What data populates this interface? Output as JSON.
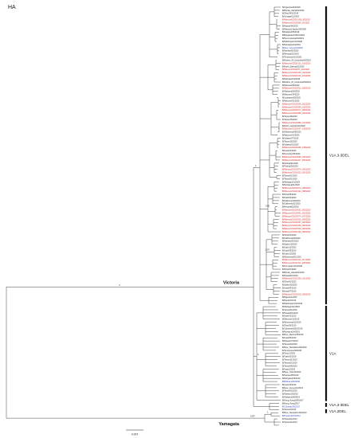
{
  "title": "HA",
  "colors": {
    "default": "#222222",
    "highlight": "#d42323",
    "reference": "#2a3fbf",
    "line": "#444444"
  },
  "clades": [
    {
      "label": "V1A.3-3DEL"
    },
    {
      "label": "V1A"
    },
    {
      "label": "V1A.3-3DEL"
    },
    {
      "label": "V1A.2DEL"
    }
  ],
  "lineages": {
    "victoria": "Victoria",
    "yamagata": "Yamagata"
  },
  "support": {
    "root": "1",
    "vic_split": "1",
    "top": "1",
    "a": "0.95",
    "b": "0.97",
    "c": "1",
    "d": "1",
    "yam": "0.97",
    "yam2": "1"
  },
  "scale_bar": "0.007",
  "taxa": [
    {
      "n": "B/Argentina/64/2020",
      "c": "default"
    },
    {
      "n": "B/Rhode_Island/01/2020",
      "c": "default"
    },
    {
      "n": "B/Ohio/2432/2019",
      "c": "default"
    },
    {
      "n": "B/Georgia/12/2019",
      "c": "default"
    },
    {
      "n": "B/Missouri/CD20/1/06_82/2020",
      "c": "highlight"
    },
    {
      "n": "B/Missouri/CD20/064_30/2020",
      "c": "highlight"
    },
    {
      "n": "B/Hawaii/34/2020",
      "c": "default"
    },
    {
      "n": "B/Missouri/Jacobs/06/2020",
      "c": "default"
    },
    {
      "n": "B/England/25/2019",
      "c": "default"
    },
    {
      "n": "B/Bangladesh/4001/2020",
      "c": "default"
    },
    {
      "n": "B/Pennsylvania/33/2019",
      "c": "default"
    },
    {
      "n": "B/Washington/01/2020",
      "c": "default"
    },
    {
      "n": "B/Nebraska/14/2019",
      "c": "default"
    },
    {
      "n": "B/New_Jersey/04/2020",
      "c": "reference"
    },
    {
      "n": "B/Kansas/02/2020",
      "c": "default"
    },
    {
      "n": "B/Nevada/22/2019",
      "c": "default"
    },
    {
      "n": "B/Tennessee/01/2020",
      "c": "default"
    },
    {
      "n": "B/District_Of_Columbia/20/2019",
      "c": "default"
    },
    {
      "n": "B/Missouri/CD20/121_013/2020",
      "c": "highlight"
    },
    {
      "n": "B/North_Dakota/01/2020",
      "c": "default"
    },
    {
      "n": "B/Missouri/CD20/07_003/2020",
      "c": "highlight"
    },
    {
      "n": "B/Missouri/CD20/130_042/2020",
      "c": "highlight"
    },
    {
      "n": "B/Missouri/CD20/119_014/2020",
      "c": "highlight"
    },
    {
      "n": "B/Maryland/11/2019",
      "c": "default"
    },
    {
      "n": "B/District_Of_Columbia/35/2019",
      "c": "default"
    },
    {
      "n": "B/Missouri/05/2020",
      "c": "default"
    },
    {
      "n": "B/Missouri/CD20/022_029/2020",
      "c": "highlight"
    },
    {
      "n": "B/Alabama/06/2020",
      "c": "default"
    },
    {
      "n": "B/Missouri/24/2020",
      "c": "default"
    },
    {
      "n": "B/Louisiana/35/2020",
      "c": "default"
    },
    {
      "n": "B/Missouri/01/2020",
      "c": "default"
    },
    {
      "n": "B/Missouri/CD20/035_001/2020",
      "c": "highlight"
    },
    {
      "n": "B/Missouri/CD20/054_015/2020",
      "c": "highlight"
    },
    {
      "n": "B/Missouri/CD20/077_009/2020",
      "c": "highlight"
    },
    {
      "n": "B/Missouri/CD20/089_010/2020",
      "c": "highlight"
    },
    {
      "n": "B/Texas/15/2020",
      "c": "default"
    },
    {
      "n": "B/Texas/10/2019",
      "c": "default"
    },
    {
      "n": "B/Missouri/CD20/089_021/2020",
      "c": "highlight"
    },
    {
      "n": "B/North_Carolina/01/2020",
      "c": "default"
    },
    {
      "n": "B/Missouri/CD20/007_015/2020",
      "c": "highlight"
    },
    {
      "n": "B/Oklahoma/06/2020",
      "c": "default"
    },
    {
      "n": "B/Missouri/01/2020",
      "c": "default"
    },
    {
      "n": "B/Indiana/07/2019",
      "c": "default"
    },
    {
      "n": "B/Texas/15/2020",
      "c": "default"
    },
    {
      "n": "B/Indiana/01/2020",
      "c": "default"
    },
    {
      "n": "B/Missouri/CD20/095_018/2020",
      "c": "highlight"
    },
    {
      "n": "B/Iowa/01/2020",
      "c": "default"
    },
    {
      "n": "B/Kentucky/05/2020",
      "c": "default"
    },
    {
      "n": "B/Missouri/CD20/095_023/2020",
      "c": "highlight"
    },
    {
      "n": "B/Missouri/CD20/117_005/2020",
      "c": "highlight"
    },
    {
      "n": "B/Florida/01/2020",
      "c": "default"
    },
    {
      "n": "B/Florida/25/2020",
      "c": "default"
    },
    {
      "n": "B/Missouri/CD20/074_023/2020",
      "c": "highlight"
    },
    {
      "n": "B/Missouri/CD20/022_001/2020",
      "c": "highlight"
    },
    {
      "n": "B/Texas/01/2020",
      "c": "default"
    },
    {
      "n": "B/Texas/01/2020",
      "c": "default"
    },
    {
      "n": "B/Michigan/01/2020",
      "c": "default"
    },
    {
      "n": "B/Montana/01/2020",
      "c": "default"
    },
    {
      "n": "B/Missouri/CD20/074_028/2020",
      "c": "highlight"
    },
    {
      "n": "B/Missouri/CD20/142_088/2020",
      "c": "highlight"
    },
    {
      "n": "B/Ohio/05/2020",
      "c": "default"
    },
    {
      "n": "B/Utah/04/2020",
      "c": "default"
    },
    {
      "n": "B/California/40/2019",
      "c": "default"
    },
    {
      "n": "B/California/21/2020",
      "c": "default"
    },
    {
      "n": "B/Nevada/02/2020",
      "c": "default"
    },
    {
      "n": "B/Missouri/CD20/052_002/2020",
      "c": "highlight"
    },
    {
      "n": "B/Missouri/CD20/061_001/2020",
      "c": "highlight"
    },
    {
      "n": "B/Missouri/CD20/074_007/2020",
      "c": "highlight"
    },
    {
      "n": "B/Missouri/CD20/026_009/2020",
      "c": "highlight"
    },
    {
      "n": "B/Missouri/CD20/097_020/2020",
      "c": "highlight"
    },
    {
      "n": "B/Missouri/CD20/139_090/2020",
      "c": "highlight"
    },
    {
      "n": "B/Missouri/CD20/039_002/2020",
      "c": "highlight"
    },
    {
      "n": "B/Missouri/CD20/146_008/2020",
      "c": "highlight"
    },
    {
      "n": "B/Ohio/01/2020",
      "c": "default"
    },
    {
      "n": "B/California/03/2020",
      "c": "default"
    },
    {
      "n": "B/Kansas/02/2020",
      "c": "default"
    },
    {
      "n": "B/Idaho/12/2020",
      "c": "default"
    },
    {
      "n": "B/Utah/13/2020",
      "c": "default"
    },
    {
      "n": "B/Utah/05/2020",
      "c": "default"
    },
    {
      "n": "B/Utah/11/2020",
      "c": "default"
    },
    {
      "n": "B/Minnesota/01/2020",
      "c": "default"
    },
    {
      "n": "B/Missouri/CD20/113_017/2020",
      "c": "highlight"
    },
    {
      "n": "B/Missouri/CD20/113_028/2020",
      "c": "highlight"
    },
    {
      "n": "B/Connecticut/11/2020",
      "c": "default"
    },
    {
      "n": "B/Ohio/07/2020",
      "c": "default"
    },
    {
      "n": "B/Rhode_Island/01/2019",
      "c": "default"
    },
    {
      "n": "B/Hawaii/01/2020",
      "c": "default"
    },
    {
      "n": "B/Missouri/CD20/100_011/2020",
      "c": "highlight"
    },
    {
      "n": "B/Ohio/01/2020",
      "c": "default"
    },
    {
      "n": "B/Idaho/10/2020",
      "c": "default"
    },
    {
      "n": "B/Iowa/04/2019",
      "c": "default"
    },
    {
      "n": "B/Iowa/07/2019",
      "c": "default"
    },
    {
      "n": "B/Missouri/CD20/015_026/2020",
      "c": "highlight"
    },
    {
      "n": "B/Nigeria/1/2020",
      "c": "default"
    },
    {
      "n": "B/Nepal/1/2019",
      "c": "default"
    },
    {
      "n": "B/Washington/02/2019",
      "c": "default"
    },
    {
      "n": "B/Michigan/11/2019",
      "c": "default"
    },
    {
      "n": "B/Texas/01/2019",
      "c": "default"
    },
    {
      "n": "B/Hawaii/01/2019",
      "c": "default"
    },
    {
      "n": "B/Iowa/12/2019",
      "c": "default"
    },
    {
      "n": "B/Missouri/11/2019",
      "c": "default"
    },
    {
      "n": "B/Minnesota/11/2019",
      "c": "default"
    },
    {
      "n": "B/Ohio/06/2019",
      "c": "default"
    },
    {
      "n": "B/Colombia/3001/2019",
      "c": "default"
    },
    {
      "n": "B/Montana/14/2019",
      "c": "default"
    },
    {
      "n": "B/New_Mexico/05/2019",
      "c": "default"
    },
    {
      "n": "B/Iowa/06/2019",
      "c": "default"
    },
    {
      "n": "B/Hawaii/17/2019",
      "c": "default"
    },
    {
      "n": "B/Texas/02/2019",
      "c": "default"
    },
    {
      "n": "B/New_Hampshire/02/2019",
      "c": "default"
    },
    {
      "n": "B/Tennessee/04/2019",
      "c": "default"
    },
    {
      "n": "B/Ohio/1/2019",
      "c": "default"
    },
    {
      "n": "B/Utah/03/2019",
      "c": "default"
    },
    {
      "n": "B/Texas/31/2019",
      "c": "default"
    },
    {
      "n": "B/Texas/01/2019",
      "c": "default"
    },
    {
      "n": "B/Texas/06/2019",
      "c": "default"
    },
    {
      "n": "B/Iowa/1/2019",
      "c": "default"
    },
    {
      "n": "B/New_York/14/2019",
      "c": "default"
    },
    {
      "n": "B/Kansas/05/2019",
      "c": "default"
    },
    {
      "n": "B/Maryland/15/2019",
      "c": "default"
    },
    {
      "n": "B/Brisbane/60/2008",
      "c": "reference"
    },
    {
      "n": "B/Iowa/13/2019",
      "c": "default"
    },
    {
      "n": "B/New_Jersey/01/2019",
      "c": "default"
    },
    {
      "n": "B/Texas/02/2019",
      "c": "default"
    },
    {
      "n": "B/Alaska/13/2019",
      "c": "default"
    },
    {
      "n": "B/Alabama/08/2019",
      "c": "default"
    },
    {
      "n": "B/Hong_Kong/269/2017",
      "c": "default"
    },
    {
      "n": "B/Hong_Kong/2017",
      "c": "default"
    },
    {
      "n": "B/Colorado/06/2017",
      "c": "reference"
    },
    {
      "n": "B/Texas/2/2013",
      "c": "default"
    },
    {
      "n": "B/New_Hampshire/04/2013",
      "c": "default"
    },
    {
      "n": "B/Phuket/3073/2013",
      "c": "reference"
    },
    {
      "n": "B/Texas/01/2014",
      "c": "default"
    },
    {
      "n": "B/Texas/21/2014",
      "c": "default"
    }
  ]
}
